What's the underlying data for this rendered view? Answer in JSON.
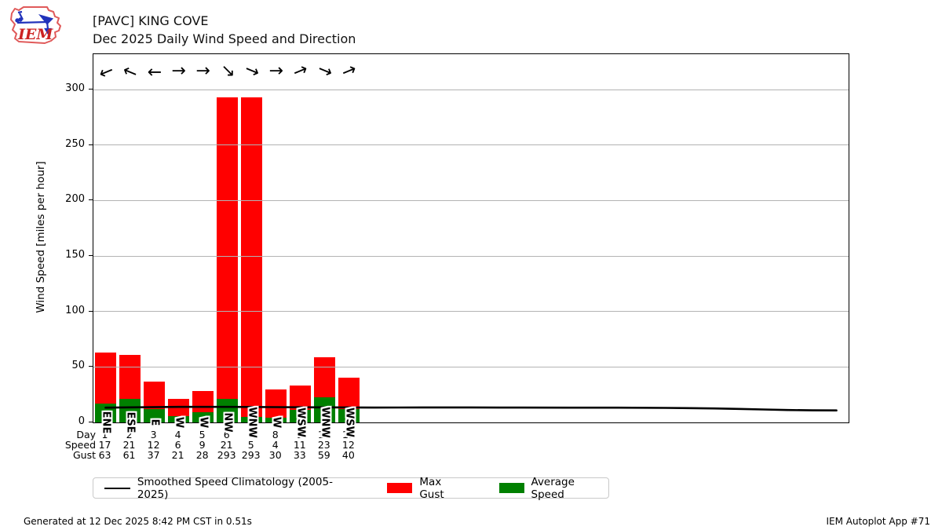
{
  "header": {
    "title_line1": "[PAVC] KING COVE",
    "title_line2": "Dec 2025 Daily Wind Speed and Direction",
    "logo_text": "IEM"
  },
  "chart_data": {
    "type": "bar",
    "title": "[PAVC] KING COVE — Dec 2025 Daily Wind Speed and Direction",
    "ylabel": "Wind Speed [miles per hour]",
    "ylim": [
      0,
      332
    ],
    "yticks": [
      0,
      50,
      100,
      150,
      200,
      250,
      300
    ],
    "x_days_span": 31,
    "grid": "horizontal",
    "days": [
      1,
      2,
      3,
      4,
      5,
      6,
      7,
      8,
      9,
      10,
      11
    ],
    "directions": [
      "ENE",
      "ESE",
      "E",
      "W",
      "W",
      "NW",
      "WNW",
      "W",
      "WSW",
      "WNW",
      "WSW"
    ],
    "direction_degrees": [
      67.5,
      112.5,
      90,
      270,
      270,
      315,
      292.5,
      270,
      247.5,
      292.5,
      247.5
    ],
    "series": [
      {
        "name": "Max Gust",
        "color": "#ff0000",
        "values": [
          63,
          61,
          37,
          21,
          28,
          293,
          293,
          30,
          33,
          59,
          40
        ]
      },
      {
        "name": "Average Speed",
        "color": "#008000",
        "values": [
          17,
          21,
          12,
          6,
          9,
          21,
          5,
          4,
          11,
          23,
          12
        ]
      }
    ],
    "climatology": {
      "name": "Smoothed Speed Climatology (2005-2025)",
      "color": "#000000",
      "points": [
        [
          1,
          13.3
        ],
        [
          2,
          13.6
        ],
        [
          4,
          14.0
        ],
        [
          6,
          14.0
        ],
        [
          8,
          13.8
        ],
        [
          10,
          13.6
        ],
        [
          12,
          13.4
        ],
        [
          14,
          13.5
        ],
        [
          16,
          13.5
        ],
        [
          18,
          13.4
        ],
        [
          20,
          13.3
        ],
        [
          22,
          13.3
        ],
        [
          24,
          13.1
        ],
        [
          25,
          12.9
        ],
        [
          26,
          12.6
        ],
        [
          27,
          12.2
        ],
        [
          28,
          11.7
        ],
        [
          29,
          11.2
        ],
        [
          30,
          10.9
        ],
        [
          31,
          10.8
        ]
      ]
    }
  },
  "axis_table": {
    "row_labels": [
      "Day",
      "Speed",
      "Gust"
    ]
  },
  "legend": {
    "items": [
      {
        "label": "Smoothed Speed Climatology (2005-2025)",
        "type": "line",
        "color": "#000000"
      },
      {
        "label": "Max Gust",
        "type": "patch",
        "color": "#ff0000"
      },
      {
        "label": "Average Speed",
        "type": "patch",
        "color": "#008000"
      }
    ]
  },
  "footer": {
    "left": "Generated at 12 Dec 2025 8:42 PM CST in 0.51s",
    "right": "IEM Autoplot App #71"
  }
}
